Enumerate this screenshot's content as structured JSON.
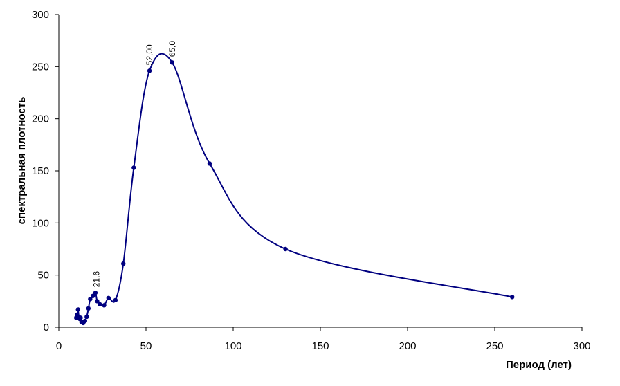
{
  "chart_data": {
    "type": "line",
    "xlabel": "Период (лет)",
    "ylabel": "спектральная плотность",
    "xlim": [
      0,
      300
    ],
    "ylim": [
      0,
      300
    ],
    "xticks": [
      0,
      50,
      100,
      150,
      200,
      250,
      300
    ],
    "yticks": [
      0,
      50,
      100,
      150,
      200,
      250,
      300
    ],
    "grid": false,
    "line_color": "#000080",
    "series": [
      {
        "x": [
          10.0,
          10.5,
          11.0,
          11.5,
          12.0,
          12.5,
          13.0,
          14.0,
          15.0,
          16.0,
          17.0,
          18.0,
          19.5,
          21.0,
          22.0,
          23.5,
          26.0,
          28.5,
          32.5,
          37.0,
          43.0,
          52.0,
          65.0,
          86.5,
          130.0,
          260.0
        ],
        "y": [
          9,
          12,
          17,
          10,
          8,
          9,
          5,
          4,
          6,
          10,
          18,
          27,
          30,
          33,
          25,
          22,
          21,
          28,
          26,
          61,
          153,
          246,
          254,
          157,
          75,
          29
        ]
      }
    ],
    "annotations": [
      {
        "text": "21,6",
        "x": 21.6,
        "y": 33
      },
      {
        "text": "52,00",
        "x": 52.0,
        "y": 246
      },
      {
        "text": "65,0",
        "x": 65.0,
        "y": 254
      }
    ]
  }
}
